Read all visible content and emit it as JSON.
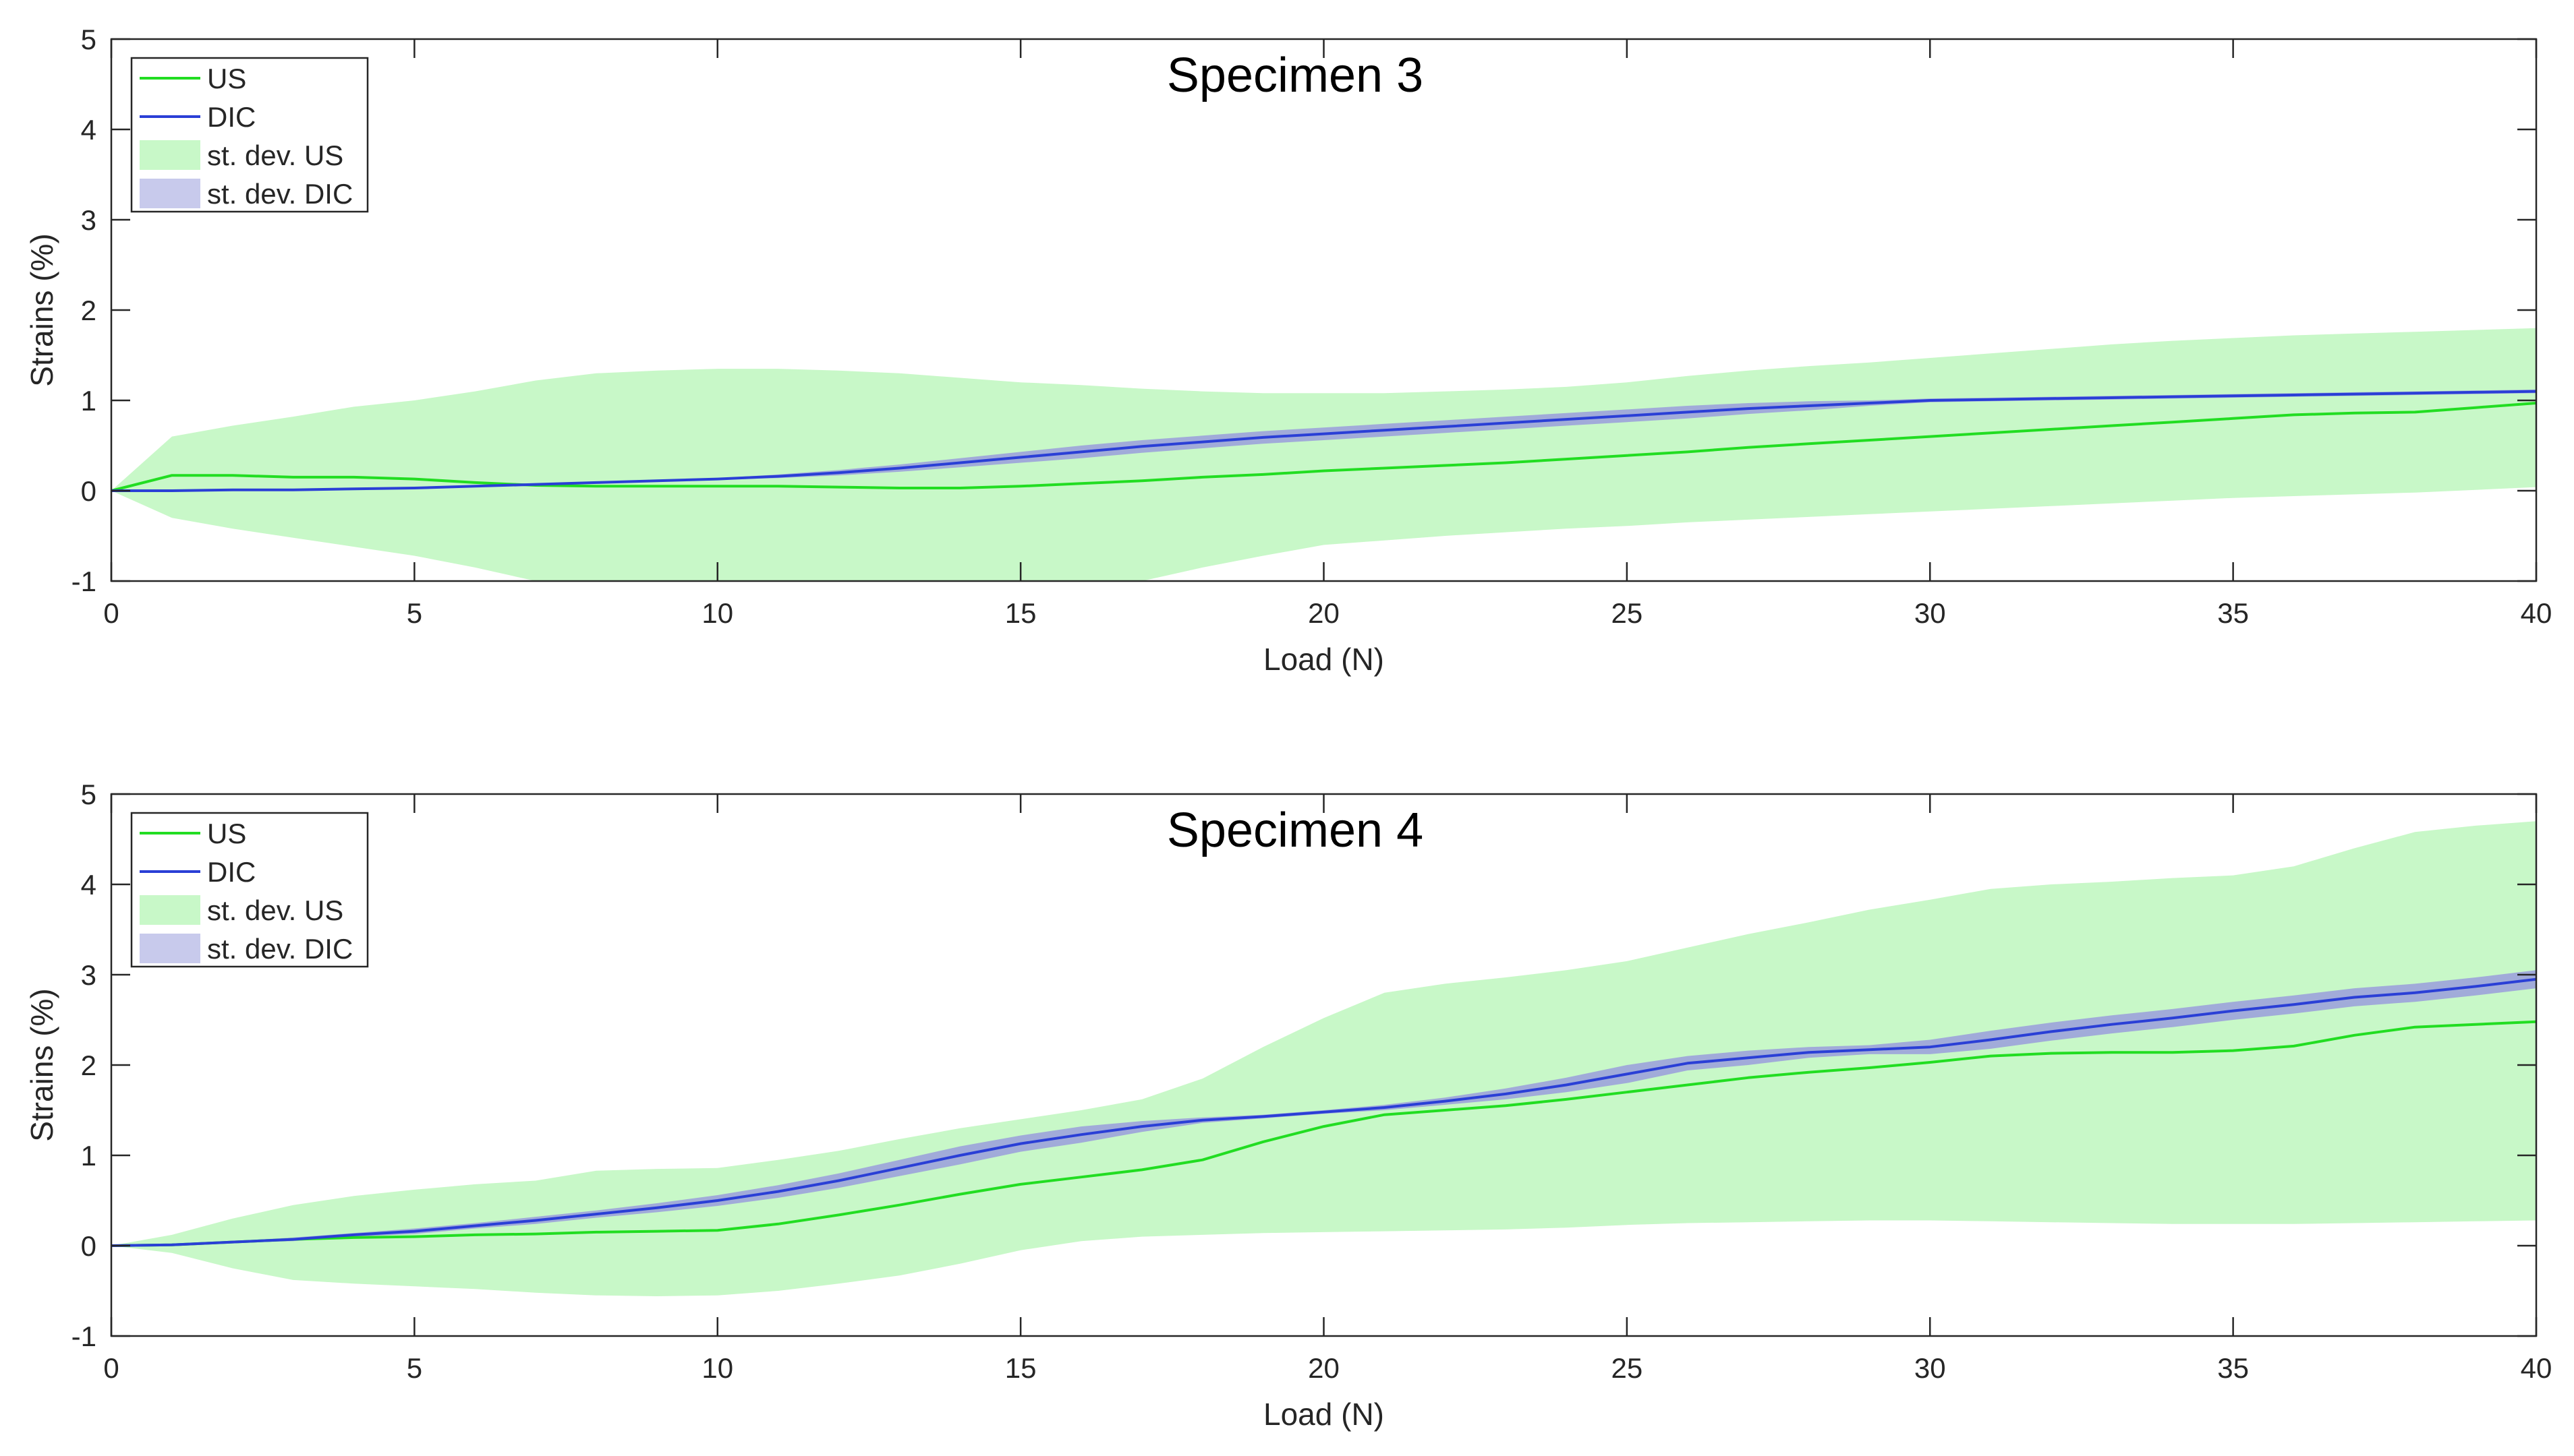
{
  "chart_data": [
    {
      "type": "line",
      "title": "Specimen 3",
      "xlabel": "Load (N)",
      "ylabel": "Strains (%)",
      "xlim": [
        0,
        40
      ],
      "ylim": [
        -1,
        5
      ],
      "xticks": [
        "0",
        "5",
        "10",
        "15",
        "20",
        "25",
        "30",
        "35",
        "40"
      ],
      "yticks": [
        "-1",
        "0",
        "1",
        "2",
        "3",
        "4",
        "5"
      ],
      "legend_position": "top-left",
      "legend": [
        "US",
        "DIC",
        "st. dev. US",
        "st. dev. DIC"
      ],
      "colors": {
        "us_line": "#22dd22",
        "dic_line": "#2a3fd6",
        "us_band": "#c8f8c8",
        "dic_band": "#9a9edc"
      },
      "x": [
        0,
        1,
        2,
        3,
        4,
        5,
        6,
        7,
        8,
        9,
        10,
        11,
        12,
        13,
        14,
        15,
        16,
        17,
        18,
        19,
        20,
        21,
        22,
        23,
        24,
        25,
        26,
        27,
        28,
        29,
        30,
        31,
        32,
        33,
        34,
        35,
        36,
        37,
        38,
        39,
        40
      ],
      "series": [
        {
          "name": "US",
          "values": [
            0,
            0.17,
            0.17,
            0.15,
            0.15,
            0.13,
            0.09,
            0.06,
            0.05,
            0.05,
            0.05,
            0.05,
            0.04,
            0.03,
            0.03,
            0.05,
            0.08,
            0.11,
            0.15,
            0.18,
            0.22,
            0.25,
            0.28,
            0.31,
            0.35,
            0.39,
            0.43,
            0.48,
            0.52,
            0.56,
            0.6,
            0.64,
            0.68,
            0.72,
            0.76,
            0.8,
            0.84,
            0.86,
            0.87,
            0.92,
            0.97
          ]
        },
        {
          "name": "DIC",
          "values": [
            0,
            0.0,
            0.01,
            0.01,
            0.02,
            0.03,
            0.05,
            0.07,
            0.09,
            0.11,
            0.13,
            0.16,
            0.2,
            0.25,
            0.31,
            0.37,
            0.43,
            0.49,
            0.54,
            0.59,
            0.63,
            0.67,
            0.71,
            0.75,
            0.79,
            0.83,
            0.87,
            0.91,
            0.94,
            0.97,
            1.0,
            1.01,
            1.02,
            1.03,
            1.04,
            1.05,
            1.06,
            1.07,
            1.08,
            1.09,
            1.1
          ]
        },
        {
          "name": "st. dev. US",
          "upper": [
            0,
            0.6,
            0.72,
            0.82,
            0.93,
            1.0,
            1.1,
            1.22,
            1.3,
            1.33,
            1.35,
            1.35,
            1.33,
            1.3,
            1.25,
            1.2,
            1.17,
            1.13,
            1.1,
            1.08,
            1.08,
            1.08,
            1.1,
            1.12,
            1.15,
            1.2,
            1.27,
            1.33,
            1.38,
            1.42,
            1.47,
            1.52,
            1.57,
            1.62,
            1.66,
            1.69,
            1.72,
            1.74,
            1.76,
            1.78,
            1.8
          ],
          "lower": [
            0,
            -0.3,
            -0.42,
            -0.52,
            -0.62,
            -0.72,
            -0.85,
            -1.0,
            -1.0,
            -1.0,
            -1.0,
            -1.0,
            -1.0,
            -1.0,
            -1.0,
            -1.0,
            -1.0,
            -1.0,
            -0.85,
            -0.72,
            -0.6,
            -0.55,
            -0.5,
            -0.46,
            -0.42,
            -0.39,
            -0.35,
            -0.32,
            -0.29,
            -0.26,
            -0.23,
            -0.2,
            -0.17,
            -0.14,
            -0.11,
            -0.08,
            -0.06,
            -0.04,
            -0.02,
            0.01,
            0.04
          ]
        },
        {
          "name": "st. dev. DIC",
          "upper": [
            0,
            0.01,
            0.02,
            0.02,
            0.03,
            0.04,
            0.06,
            0.08,
            0.1,
            0.12,
            0.14,
            0.18,
            0.23,
            0.29,
            0.36,
            0.43,
            0.5,
            0.56,
            0.61,
            0.66,
            0.7,
            0.74,
            0.78,
            0.82,
            0.86,
            0.9,
            0.94,
            0.97,
            0.99,
            1.0,
            1.02,
            1.03,
            1.04,
            1.05,
            1.06,
            1.07,
            1.08,
            1.09,
            1.1,
            1.11,
            1.12
          ],
          "lower": [
            0,
            -0.01,
            0.0,
            0.0,
            0.01,
            0.02,
            0.04,
            0.06,
            0.08,
            0.1,
            0.12,
            0.14,
            0.17,
            0.21,
            0.26,
            0.31,
            0.36,
            0.42,
            0.47,
            0.52,
            0.56,
            0.6,
            0.64,
            0.68,
            0.72,
            0.76,
            0.8,
            0.85,
            0.89,
            0.94,
            0.98,
            0.99,
            1.0,
            1.01,
            1.02,
            1.03,
            1.04,
            1.05,
            1.06,
            1.07,
            1.08
          ]
        }
      ]
    },
    {
      "type": "line",
      "title": "Specimen 4",
      "xlabel": "Load (N)",
      "ylabel": "Strains (%)",
      "xlim": [
        0,
        40
      ],
      "ylim": [
        -1,
        5
      ],
      "xticks": [
        "0",
        "5",
        "10",
        "15",
        "20",
        "25",
        "30",
        "35",
        "40"
      ],
      "yticks": [
        "-1",
        "0",
        "1",
        "2",
        "3",
        "4",
        "5"
      ],
      "legend_position": "top-left",
      "legend": [
        "US",
        "DIC",
        "st. dev. US",
        "st. dev. DIC"
      ],
      "colors": {
        "us_line": "#22dd22",
        "dic_line": "#2a3fd6",
        "us_band": "#c8f8c8",
        "dic_band": "#9a9edc"
      },
      "x": [
        0,
        1,
        2,
        3,
        4,
        5,
        6,
        7,
        8,
        9,
        10,
        11,
        12,
        13,
        14,
        15,
        16,
        17,
        18,
        19,
        20,
        21,
        22,
        23,
        24,
        25,
        26,
        27,
        28,
        29,
        30,
        31,
        32,
        33,
        34,
        35,
        36,
        37,
        38,
        39,
        40
      ],
      "series": [
        {
          "name": "US",
          "values": [
            0,
            0.01,
            0.04,
            0.07,
            0.09,
            0.1,
            0.12,
            0.13,
            0.15,
            0.16,
            0.17,
            0.24,
            0.34,
            0.45,
            0.57,
            0.68,
            0.76,
            0.84,
            0.95,
            1.15,
            1.32,
            1.45,
            1.5,
            1.55,
            1.62,
            1.7,
            1.78,
            1.86,
            1.92,
            1.97,
            2.03,
            2.1,
            2.13,
            2.14,
            2.14,
            2.16,
            2.21,
            2.33,
            2.42,
            2.45,
            2.48
          ]
        },
        {
          "name": "DIC",
          "values": [
            0,
            0.01,
            0.04,
            0.07,
            0.12,
            0.16,
            0.22,
            0.28,
            0.35,
            0.42,
            0.5,
            0.6,
            0.72,
            0.86,
            1.0,
            1.13,
            1.23,
            1.32,
            1.39,
            1.43,
            1.48,
            1.53,
            1.6,
            1.68,
            1.78,
            1.9,
            2.02,
            2.08,
            2.14,
            2.17,
            2.2,
            2.28,
            2.37,
            2.45,
            2.52,
            2.6,
            2.67,
            2.75,
            2.8,
            2.87,
            2.95
          ]
        },
        {
          "name": "st. dev. US",
          "upper": [
            0,
            0.12,
            0.3,
            0.45,
            0.55,
            0.62,
            0.68,
            0.72,
            0.83,
            0.85,
            0.86,
            0.95,
            1.05,
            1.18,
            1.3,
            1.4,
            1.5,
            1.62,
            1.85,
            2.2,
            2.52,
            2.8,
            2.9,
            2.97,
            3.05,
            3.15,
            3.3,
            3.45,
            3.58,
            3.72,
            3.83,
            3.95,
            4.0,
            4.03,
            4.07,
            4.1,
            4.2,
            4.4,
            4.58,
            4.65,
            4.7
          ],
          "lower": [
            0,
            -0.08,
            -0.25,
            -0.38,
            -0.42,
            -0.45,
            -0.48,
            -0.52,
            -0.55,
            -0.56,
            -0.55,
            -0.5,
            -0.42,
            -0.33,
            -0.2,
            -0.05,
            0.05,
            0.1,
            0.12,
            0.14,
            0.15,
            0.16,
            0.17,
            0.18,
            0.2,
            0.23,
            0.25,
            0.26,
            0.27,
            0.28,
            0.28,
            0.27,
            0.26,
            0.25,
            0.24,
            0.24,
            0.24,
            0.25,
            0.26,
            0.27,
            0.28
          ]
        },
        {
          "name": "st. dev. DIC",
          "upper": [
            0,
            0.02,
            0.05,
            0.09,
            0.14,
            0.19,
            0.25,
            0.32,
            0.39,
            0.47,
            0.56,
            0.67,
            0.8,
            0.95,
            1.1,
            1.22,
            1.32,
            1.38,
            1.42,
            1.45,
            1.5,
            1.56,
            1.64,
            1.74,
            1.86,
            2.0,
            2.1,
            2.16,
            2.2,
            2.22,
            2.28,
            2.38,
            2.47,
            2.55,
            2.62,
            2.7,
            2.77,
            2.85,
            2.9,
            2.97,
            3.05
          ],
          "lower": [
            0,
            0.0,
            0.03,
            0.05,
            0.1,
            0.13,
            0.19,
            0.24,
            0.31,
            0.37,
            0.44,
            0.53,
            0.64,
            0.77,
            0.9,
            1.04,
            1.14,
            1.26,
            1.36,
            1.41,
            1.46,
            1.5,
            1.56,
            1.62,
            1.7,
            1.8,
            1.94,
            2.0,
            2.08,
            2.12,
            2.12,
            2.18,
            2.27,
            2.35,
            2.42,
            2.5,
            2.57,
            2.65,
            2.7,
            2.77,
            2.85
          ]
        }
      ]
    }
  ]
}
